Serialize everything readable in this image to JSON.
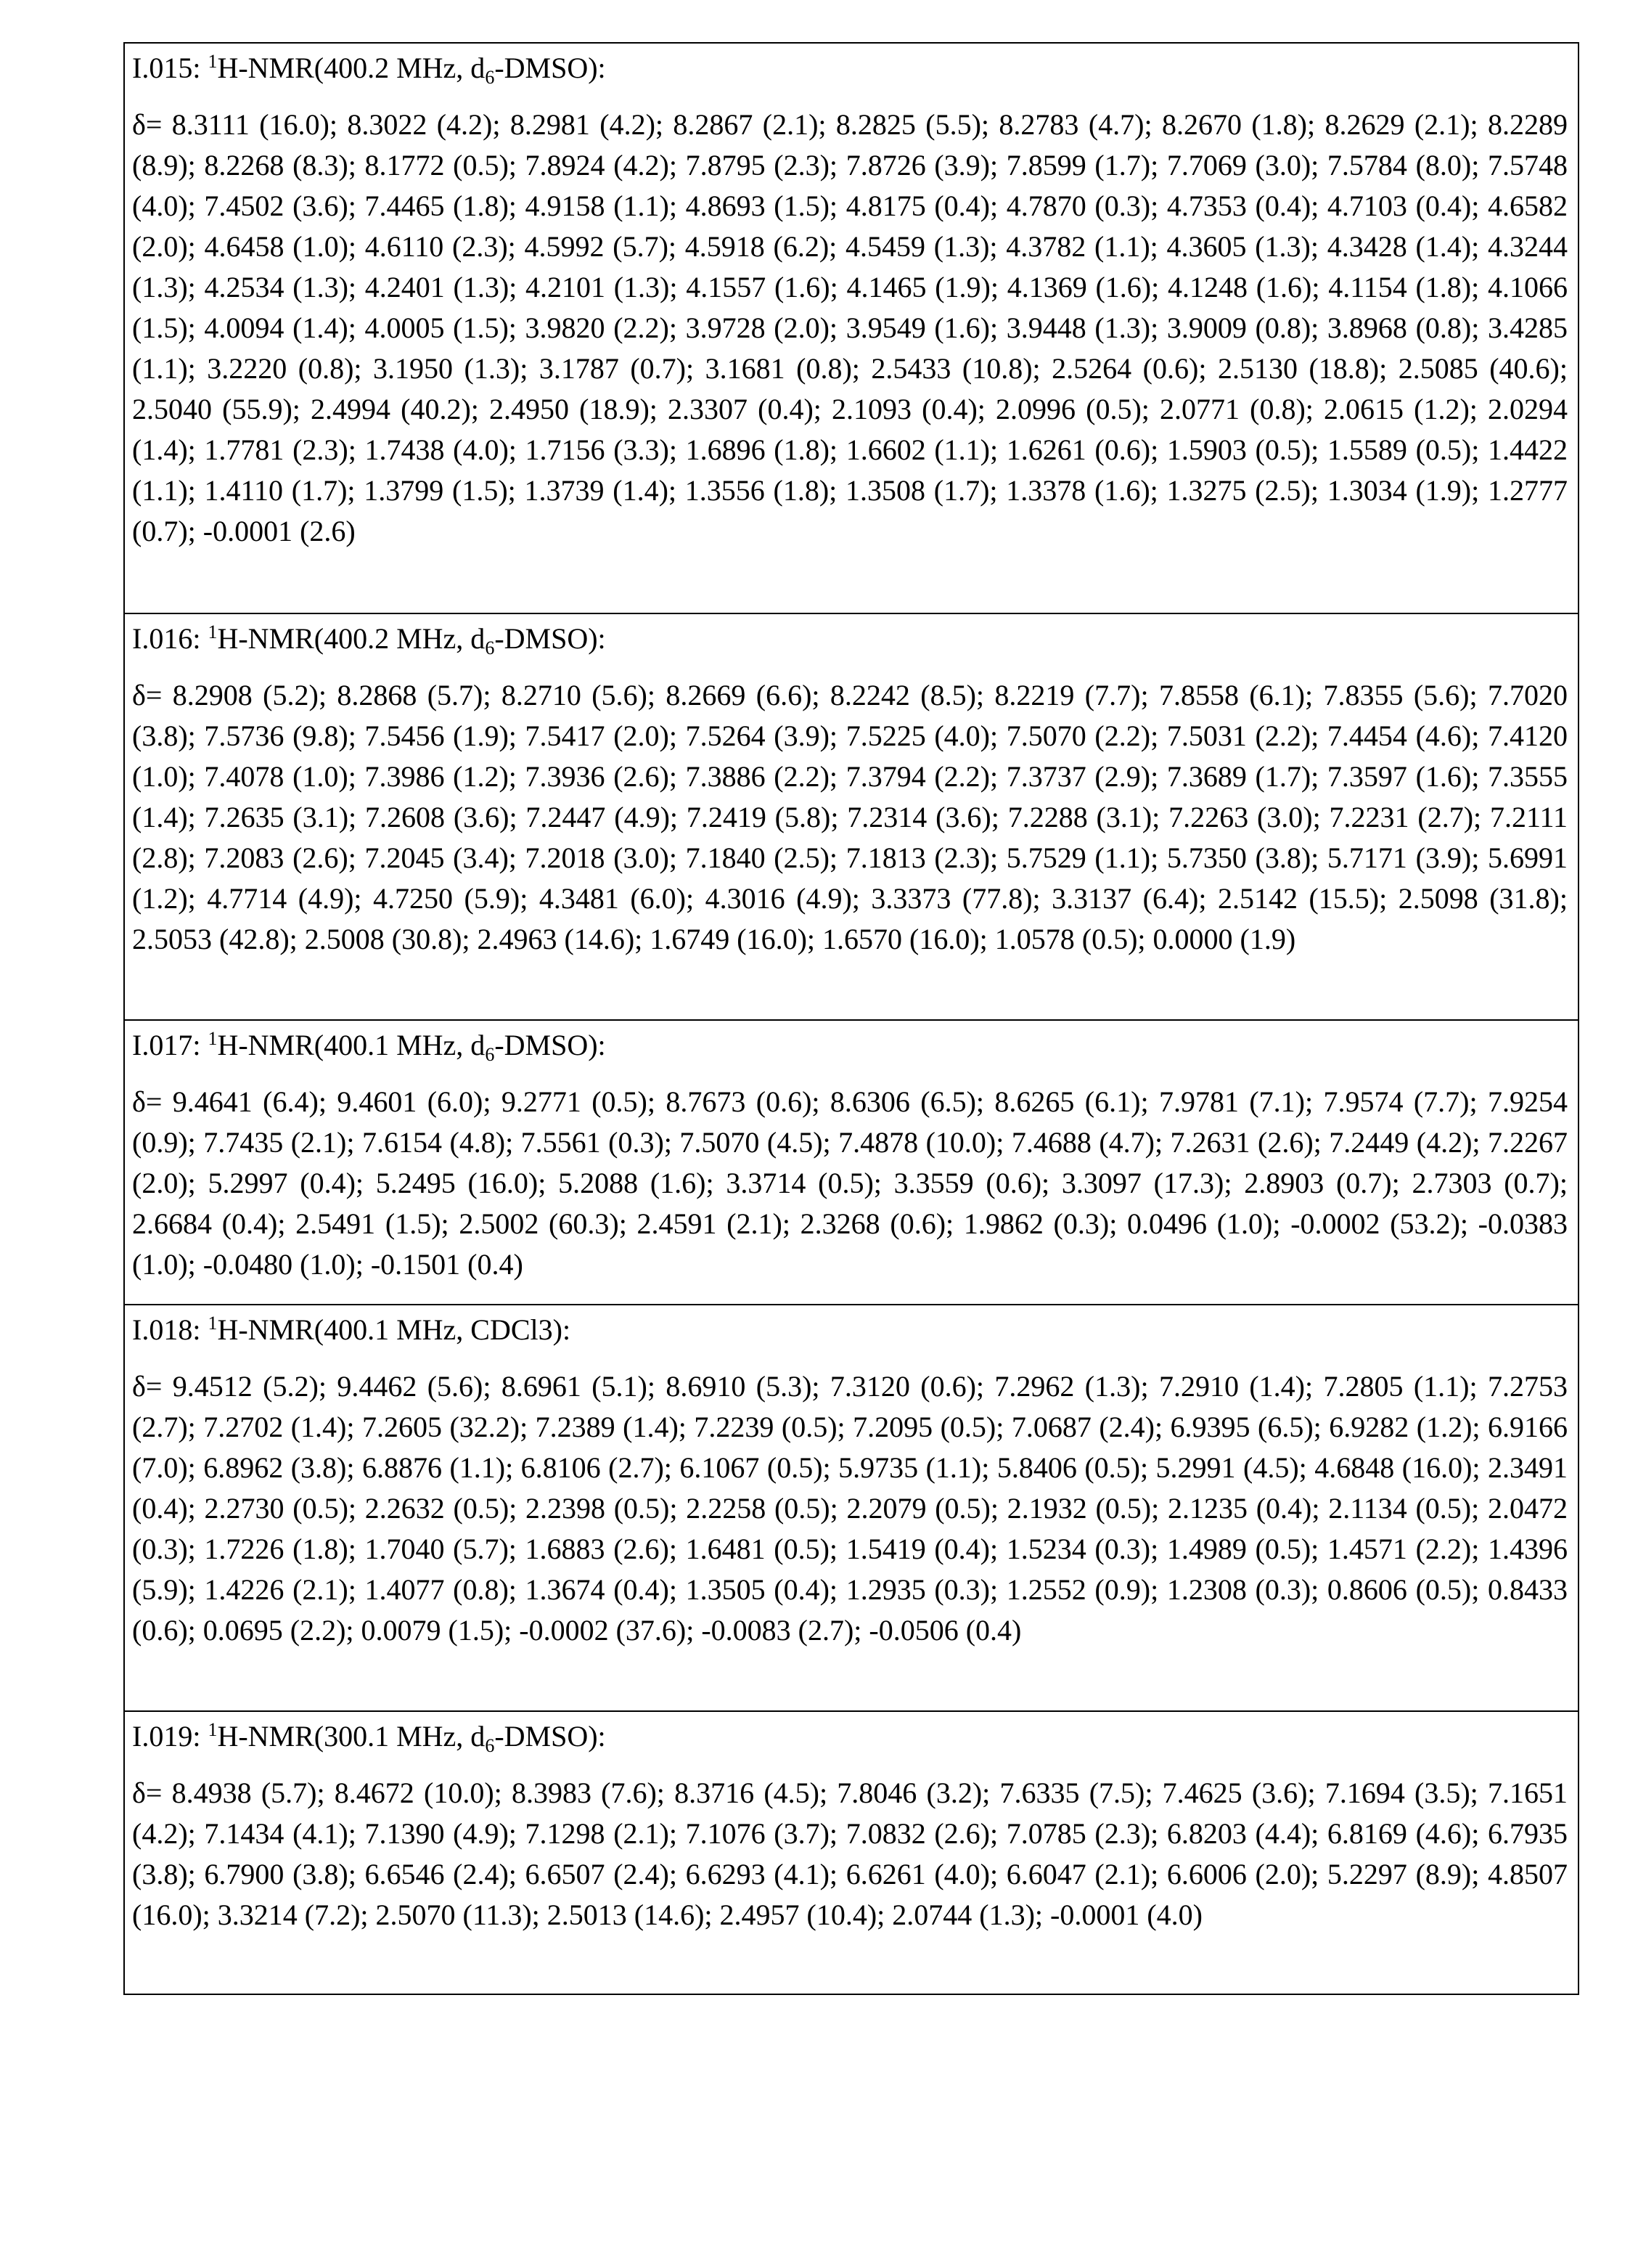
{
  "records": [
    {
      "label": "I.015:",
      "sup": "1",
      "pre": "H-NMR(400.2 MHz, d",
      "sub": "6",
      "post": "-DMSO):",
      "shifts": "δ= 8.3111 (16.0); 8.3022 (4.2); 8.2981 (4.2); 8.2867 (2.1); 8.2825 (5.5); 8.2783 (4.7); 8.2670 (1.8); 8.2629 (2.1); 8.2289 (8.9); 8.2268 (8.3); 8.1772 (0.5); 7.8924 (4.2); 7.8795 (2.3); 7.8726 (3.9); 7.8599 (1.7); 7.7069 (3.0); 7.5784 (8.0); 7.5748 (4.0); 7.4502 (3.6); 7.4465 (1.8); 4.9158 (1.1); 4.8693 (1.5); 4.8175 (0.4); 4.7870 (0.3); 4.7353 (0.4); 4.7103 (0.4); 4.6582 (2.0); 4.6458 (1.0); 4.6110 (2.3); 4.5992 (5.7); 4.5918 (6.2); 4.5459 (1.3); 4.3782 (1.1); 4.3605 (1.3); 4.3428 (1.4); 4.3244 (1.3); 4.2534 (1.3); 4.2401 (1.3); 4.2101 (1.3); 4.1557 (1.6); 4.1465 (1.9); 4.1369 (1.6); 4.1248 (1.6); 4.1154 (1.8); 4.1066 (1.5); 4.0094 (1.4); 4.0005 (1.5); 3.9820 (2.2); 3.9728 (2.0); 3.9549 (1.6); 3.9448 (1.3); 3.9009 (0.8); 3.8968 (0.8); 3.4285 (1.1); 3.2220 (0.8); 3.1950 (1.3); 3.1787 (0.7); 3.1681 (0.8); 2.5433 (10.8); 2.5264 (0.6); 2.5130 (18.8); 2.5085 (40.6); 2.5040 (55.9); 2.4994 (40.2); 2.4950 (18.9); 2.3307 (0.4); 2.1093 (0.4); 2.0996 (0.5); 2.0771 (0.8); 2.0615 (1.2); 2.0294 (1.4); 1.7781 (2.3); 1.7438 (4.0); 1.7156 (3.3); 1.6896 (1.8); 1.6602 (1.1); 1.6261 (0.6); 1.5903 (0.5); 1.5589 (0.5); 1.4422 (1.1); 1.4110 (1.7); 1.3799 (1.5); 1.3739 (1.4); 1.3556 (1.8); 1.3508 (1.7); 1.3378 (1.6); 1.3275 (2.5); 1.3034 (1.9); 1.2777 (0.7); -0.0001 (2.6)"
    },
    {
      "label": "I.016:",
      "sup": "1",
      "pre": "H-NMR(400.2 MHz, d",
      "sub": "6",
      "post": "-DMSO):",
      "shifts": "δ= 8.2908 (5.2); 8.2868 (5.7); 8.2710 (5.6); 8.2669 (6.6); 8.2242 (8.5); 8.2219 (7.7); 7.8558 (6.1); 7.8355 (5.6); 7.7020 (3.8); 7.5736 (9.8); 7.5456 (1.9); 7.5417 (2.0); 7.5264 (3.9); 7.5225 (4.0); 7.5070 (2.2); 7.5031 (2.2); 7.4454 (4.6); 7.4120 (1.0); 7.4078 (1.0); 7.3986 (1.2); 7.3936 (2.6); 7.3886 (2.2); 7.3794 (2.2); 7.3737 (2.9); 7.3689 (1.7); 7.3597 (1.6); 7.3555 (1.4); 7.2635 (3.1); 7.2608 (3.6); 7.2447 (4.9); 7.2419 (5.8); 7.2314 (3.6); 7.2288 (3.1); 7.2263 (3.0); 7.2231 (2.7); 7.2111 (2.8); 7.2083 (2.6); 7.2045 (3.4); 7.2018 (3.0); 7.1840 (2.5); 7.1813 (2.3); 5.7529 (1.1); 5.7350 (3.8); 5.7171 (3.9); 5.6991 (1.2); 4.7714 (4.9); 4.7250 (5.9); 4.3481 (6.0); 4.3016 (4.9); 3.3373 (77.8); 3.3137 (6.4); 2.5142 (15.5); 2.5098 (31.8); 2.5053 (42.8); 2.5008 (30.8); 2.4963 (14.6); 1.6749 (16.0); 1.6570 (16.0); 1.0578 (0.5); 0.0000 (1.9)"
    },
    {
      "label": "I.017:",
      "sup": "1",
      "pre": "H-NMR(400.1 MHz, d",
      "sub": "6",
      "post": "-DMSO):",
      "shifts": "δ= 9.4641 (6.4); 9.4601 (6.0); 9.2771 (0.5); 8.7673 (0.6); 8.6306 (6.5); 8.6265 (6.1); 7.9781 (7.1); 7.9574 (7.7); 7.9254 (0.9); 7.7435 (2.1); 7.6154 (4.8); 7.5561 (0.3); 7.5070 (4.5); 7.4878 (10.0); 7.4688 (4.7); 7.2631 (2.6); 7.2449 (4.2); 7.2267 (2.0); 5.2997 (0.4); 5.2495 (16.0); 5.2088 (1.6); 3.3714 (0.5); 3.3559 (0.6); 3.3097 (17.3); 2.8903 (0.7); 2.7303 (0.7); 2.6684 (0.4); 2.5491 (1.5); 2.5002 (60.3); 2.4591 (2.1); 2.3268 (0.6); 1.9862 (0.3); 0.0496 (1.0); -0.0002 (53.2); -0.0383 (1.0); -0.0480 (1.0); -0.1501 (0.4)"
    },
    {
      "label": "I.018:",
      "sup": "1",
      "pre": "H-NMR(400.1 MHz, CDCl3):",
      "sub": "",
      "post": "",
      "shifts": "δ= 9.4512 (5.2); 9.4462 (5.6); 8.6961 (5.1); 8.6910 (5.3); 7.3120 (0.6); 7.2962 (1.3); 7.2910 (1.4); 7.2805 (1.1); 7.2753 (2.7); 7.2702 (1.4); 7.2605 (32.2); 7.2389 (1.4); 7.2239 (0.5); 7.2095 (0.5); 7.0687 (2.4); 6.9395 (6.5); 6.9282 (1.2); 6.9166 (7.0); 6.8962 (3.8); 6.8876 (1.1); 6.8106 (2.7); 6.1067 (0.5); 5.9735 (1.1); 5.8406 (0.5); 5.2991 (4.5); 4.6848 (16.0); 2.3491 (0.4); 2.2730 (0.5); 2.2632 (0.5); 2.2398 (0.5); 2.2258 (0.5); 2.2079 (0.5); 2.1932 (0.5); 2.1235 (0.4); 2.1134 (0.5); 2.0472 (0.3); 1.7226 (1.8); 1.7040 (5.7); 1.6883 (2.6); 1.6481 (0.5); 1.5419 (0.4); 1.5234 (0.3); 1.4989 (0.5); 1.4571 (2.2); 1.4396 (5.9); 1.4226 (2.1); 1.4077 (0.8); 1.3674 (0.4); 1.3505 (0.4); 1.2935 (0.3); 1.2552 (0.9); 1.2308 (0.3); 0.8606 (0.5); 0.8433 (0.6); 0.0695 (2.2); 0.0079 (1.5); -0.0002 (37.6); -0.0083 (2.7); -0.0506 (0.4)"
    },
    {
      "label": "I.019:",
      "sup": "1",
      "pre": "H-NMR(300.1 MHz, d",
      "sub": "6",
      "post": "-DMSO):",
      "shifts": "δ= 8.4938 (5.7); 8.4672 (10.0); 8.3983 (7.6); 8.3716 (4.5); 7.8046 (3.2); 7.6335 (7.5); 7.4625 (3.6); 7.1694 (3.5); 7.1651 (4.2); 7.1434 (4.1); 7.1390 (4.9); 7.1298 (2.1); 7.1076 (3.7); 7.0832 (2.6); 7.0785 (2.3); 6.8203 (4.4); 6.8169 (4.6); 6.7935 (3.8); 6.7900 (3.8); 6.6546 (2.4); 6.6507 (2.4); 6.6293 (4.1); 6.6261 (4.0); 6.6047 (2.1); 6.6006 (2.0); 5.2297 (8.9); 4.8507 (16.0); 3.3214 (7.2); 2.5070 (11.3); 2.5013 (14.6); 2.4957 (10.4); 2.0744 (1.3); -0.0001 (4.0)"
    }
  ]
}
